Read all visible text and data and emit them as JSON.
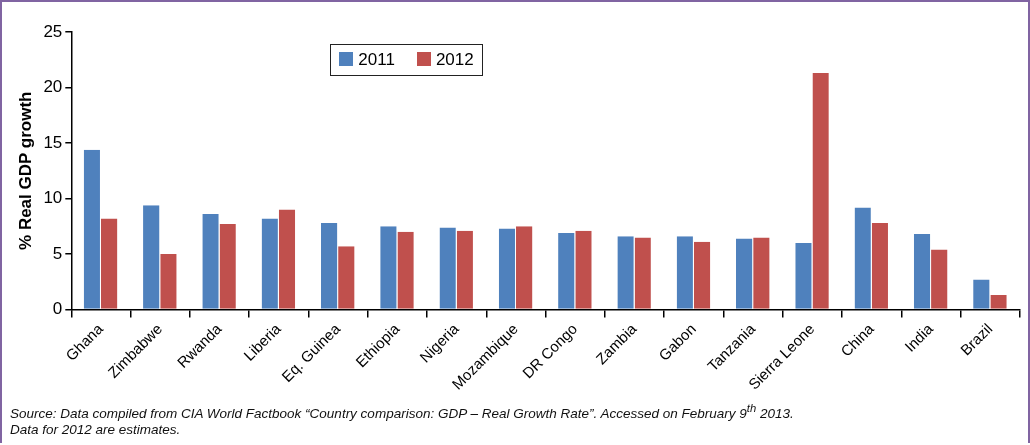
{
  "chart_data": {
    "type": "bar",
    "ylabel": "% Real GDP growth",
    "categories": [
      "Ghana",
      "Zimbabwe",
      "Rwanda",
      "Liberia",
      "Eq. Guinea",
      "Ethiopia",
      "Nigeria",
      "Mozambique",
      "DR Congo",
      "Zambia",
      "Gabon",
      "Tanzania",
      "Sierra Leone",
      "China",
      "India",
      "Brazil"
    ],
    "series": [
      {
        "name": "2011",
        "color": "#4f81bd",
        "values": [
          14.4,
          9.4,
          8.6,
          8.2,
          7.8,
          7.5,
          7.4,
          7.3,
          6.9,
          6.6,
          6.6,
          6.4,
          6.0,
          9.2,
          6.8,
          2.7
        ]
      },
      {
        "name": "2012",
        "color": "#c0504d",
        "values": [
          8.2,
          5.0,
          7.7,
          9.0,
          5.7,
          7.0,
          7.1,
          7.5,
          7.1,
          6.5,
          6.1,
          6.5,
          21.3,
          7.8,
          5.4,
          1.3
        ]
      }
    ],
    "ylim": [
      0,
      25
    ],
    "yticks": [
      0,
      5,
      10,
      15,
      20,
      25
    ],
    "grid": false,
    "legend": "top",
    "annotations": [
      "Source: Data compiled from CIA World Factbook “Country comparison: GDP – Real Growth Rate”. Accessed on February 9$^{th}$ 2013.",
      "Data for 2012 are estimates."
    ]
  }
}
